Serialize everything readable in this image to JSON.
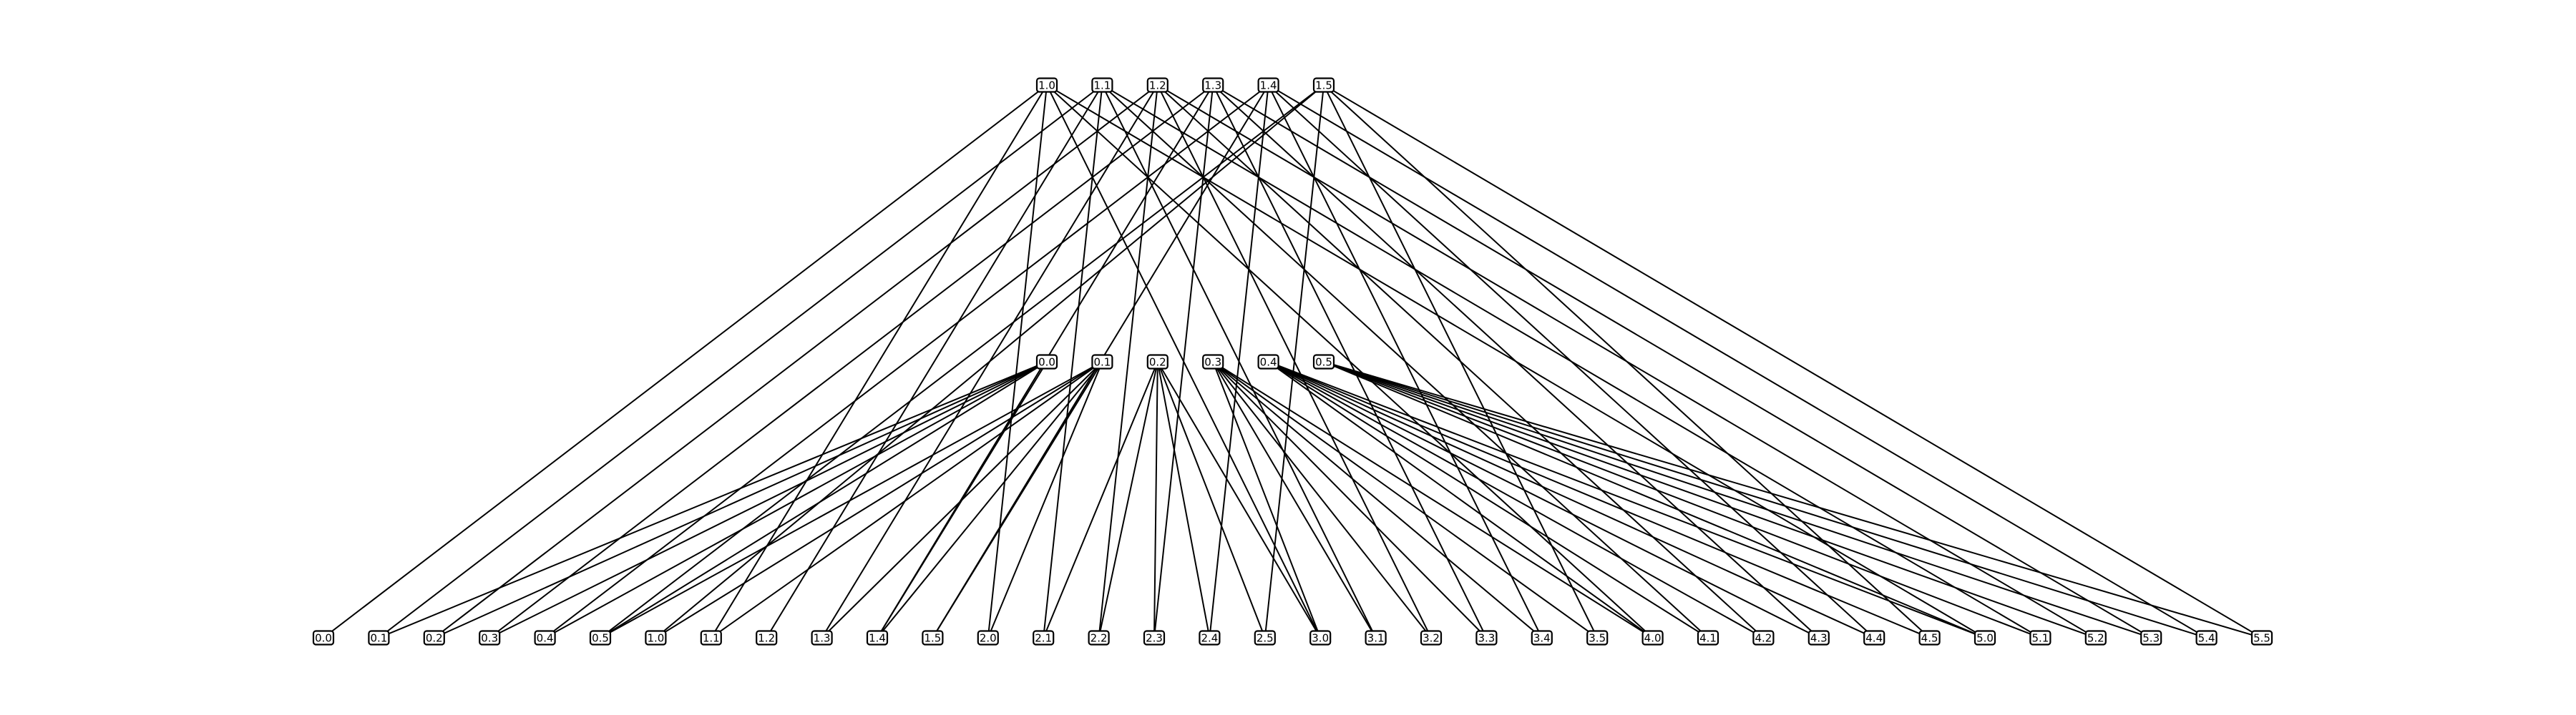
{
  "diagram": {
    "type": "layered-graph",
    "layers": [
      {
        "name": "top",
        "nodes": [
          "1.0",
          "1.1",
          "1.2",
          "1.3",
          "1.4",
          "1.5"
        ]
      },
      {
        "name": "middle",
        "nodes": [
          "0.0",
          "0.1",
          "0.2",
          "0.3",
          "0.4",
          "0.5"
        ]
      },
      {
        "name": "bottom",
        "nodes": [
          "0.0",
          "0.1",
          "0.2",
          "0.3",
          "0.4",
          "0.5",
          "1.0",
          "1.1",
          "1.2",
          "1.3",
          "1.4",
          "1.5",
          "2.0",
          "2.1",
          "2.2",
          "2.3",
          "2.4",
          "2.5",
          "3.0",
          "3.1",
          "3.2",
          "3.3",
          "3.4",
          "3.5",
          "4.0",
          "4.1",
          "4.2",
          "4.3",
          "4.4",
          "4.5",
          "5.0",
          "5.1",
          "5.2",
          "5.3",
          "5.4",
          "5.5"
        ]
      }
    ],
    "edges": [
      [
        "top:1.0",
        "bottom:0.0"
      ],
      [
        "top:1.0",
        "bottom:1.1"
      ],
      [
        "top:1.0",
        "bottom:2.0"
      ],
      [
        "top:1.0",
        "bottom:3.0"
      ],
      [
        "top:1.0",
        "bottom:4.0"
      ],
      [
        "top:1.0",
        "bottom:5.0"
      ],
      [
        "top:1.1",
        "bottom:0.1"
      ],
      [
        "top:1.1",
        "bottom:1.2"
      ],
      [
        "top:1.1",
        "bottom:2.1"
      ],
      [
        "top:1.1",
        "bottom:3.1"
      ],
      [
        "top:1.1",
        "bottom:4.1"
      ],
      [
        "top:1.1",
        "bottom:5.1"
      ],
      [
        "top:1.2",
        "bottom:0.2"
      ],
      [
        "top:1.2",
        "bottom:1.3"
      ],
      [
        "top:1.2",
        "bottom:2.2"
      ],
      [
        "top:1.2",
        "bottom:3.2"
      ],
      [
        "top:1.2",
        "bottom:4.2"
      ],
      [
        "top:1.2",
        "bottom:5.2"
      ],
      [
        "top:1.3",
        "bottom:0.3"
      ],
      [
        "top:1.3",
        "bottom:1.4"
      ],
      [
        "top:1.3",
        "bottom:2.3"
      ],
      [
        "top:1.3",
        "bottom:3.3"
      ],
      [
        "top:1.3",
        "bottom:4.3"
      ],
      [
        "top:1.3",
        "bottom:5.3"
      ],
      [
        "top:1.4",
        "bottom:0.4"
      ],
      [
        "top:1.4",
        "bottom:1.5"
      ],
      [
        "top:1.4",
        "bottom:2.4"
      ],
      [
        "top:1.4",
        "bottom:3.4"
      ],
      [
        "top:1.4",
        "bottom:4.4"
      ],
      [
        "top:1.4",
        "bottom:5.4"
      ],
      [
        "top:1.5",
        "bottom:0.5"
      ],
      [
        "top:1.5",
        "bottom:1.0"
      ],
      [
        "top:1.5",
        "bottom:2.5"
      ],
      [
        "top:1.5",
        "bottom:3.5"
      ],
      [
        "top:1.5",
        "bottom:4.5"
      ],
      [
        "top:1.5",
        "bottom:5.5"
      ],
      [
        "middle:0.0",
        "bottom:0.1"
      ],
      [
        "middle:0.0",
        "bottom:0.2"
      ],
      [
        "middle:0.0",
        "bottom:0.3"
      ],
      [
        "middle:0.0",
        "bottom:0.4"
      ],
      [
        "middle:0.0",
        "bottom:0.5"
      ],
      [
        "middle:0.0",
        "bottom:1.4"
      ],
      [
        "middle:0.1",
        "bottom:0.5"
      ],
      [
        "middle:0.1",
        "bottom:1.0"
      ],
      [
        "middle:0.1",
        "bottom:1.1"
      ],
      [
        "middle:0.1",
        "bottom:1.3"
      ],
      [
        "middle:0.1",
        "bottom:1.4"
      ],
      [
        "middle:0.1",
        "bottom:1.5"
      ],
      [
        "middle:0.1",
        "bottom:2.0"
      ],
      [
        "middle:0.2",
        "bottom:2.1"
      ],
      [
        "middle:0.2",
        "bottom:2.2"
      ],
      [
        "middle:0.2",
        "bottom:2.3"
      ],
      [
        "middle:0.2",
        "bottom:2.4"
      ],
      [
        "middle:0.2",
        "bottom:2.5"
      ],
      [
        "middle:0.2",
        "bottom:3.0"
      ],
      [
        "middle:0.3",
        "bottom:3.0"
      ],
      [
        "middle:0.3",
        "bottom:3.1"
      ],
      [
        "middle:0.3",
        "bottom:3.2"
      ],
      [
        "middle:0.3",
        "bottom:3.3"
      ],
      [
        "middle:0.3",
        "bottom:3.4"
      ],
      [
        "middle:0.3",
        "bottom:3.5"
      ],
      [
        "middle:0.3",
        "bottom:4.0"
      ],
      [
        "middle:0.4",
        "bottom:4.0"
      ],
      [
        "middle:0.4",
        "bottom:4.1"
      ],
      [
        "middle:0.4",
        "bottom:4.2"
      ],
      [
        "middle:0.4",
        "bottom:4.3"
      ],
      [
        "middle:0.4",
        "bottom:4.4"
      ],
      [
        "middle:0.4",
        "bottom:4.5"
      ],
      [
        "middle:0.4",
        "bottom:5.0"
      ],
      [
        "middle:0.5",
        "bottom:5.0"
      ],
      [
        "middle:0.5",
        "bottom:5.1"
      ],
      [
        "middle:0.5",
        "bottom:5.2"
      ],
      [
        "middle:0.5",
        "bottom:5.3"
      ],
      [
        "middle:0.5",
        "bottom:5.4"
      ],
      [
        "middle:0.5",
        "bottom:5.5"
      ]
    ]
  }
}
